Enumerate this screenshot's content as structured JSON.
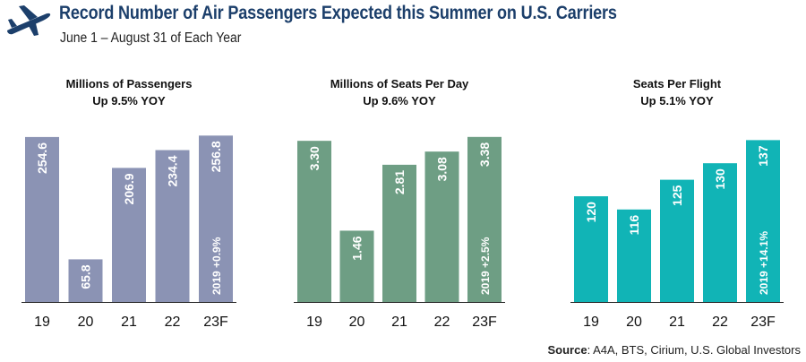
{
  "header": {
    "title": "Record Number of Air Passengers Expected this Summer on U.S. Carriers",
    "subtitle": "June 1 – August  31 of Each Year",
    "icon": "airplane-icon"
  },
  "chart_data": [
    {
      "type": "bar",
      "title": "Millions of Passengers",
      "subtitle": "Up 9.5% YOY",
      "categories": [
        "19",
        "20",
        "21",
        "22",
        "23F"
      ],
      "values": [
        254.6,
        65.8,
        206.9,
        234.4,
        256.8
      ],
      "labels": [
        "254.6",
        "65.8",
        "206.9",
        "234.4",
        "256.8"
      ],
      "annotation": "2019 +0.9%",
      "annotation_index": 4,
      "color": "#8b93b4",
      "ylim": [
        0,
        260
      ]
    },
    {
      "type": "bar",
      "title": "Millions of Seats Per Day",
      "subtitle": "Up 9.6% YOY",
      "categories": [
        "19",
        "20",
        "21",
        "22",
        "23F"
      ],
      "values": [
        3.3,
        1.46,
        2.81,
        3.08,
        3.38
      ],
      "labels": [
        "3.30",
        "1.46",
        "2.81",
        "3.08",
        "3.38"
      ],
      "annotation": "2019 +2.5%",
      "annotation_index": 4,
      "color": "#6e9e84",
      "ylim": [
        0,
        3.45
      ]
    },
    {
      "type": "bar",
      "title": "Seats Per Flight",
      "subtitle": "Up 5.1% YOY",
      "categories": [
        "19",
        "20",
        "21",
        "22",
        "23F"
      ],
      "values": [
        120,
        116,
        125,
        130,
        137
      ],
      "labels": [
        "120",
        "116",
        "125",
        "130",
        "137"
      ],
      "annotation": "2019 +14.1%",
      "annotation_index": 4,
      "color": "#11b4b6",
      "ylim": [
        88,
        139
      ]
    }
  ],
  "source": {
    "label": "Source",
    "text": ": A4A, BTS, Cirium, U.S. Global Investors"
  }
}
